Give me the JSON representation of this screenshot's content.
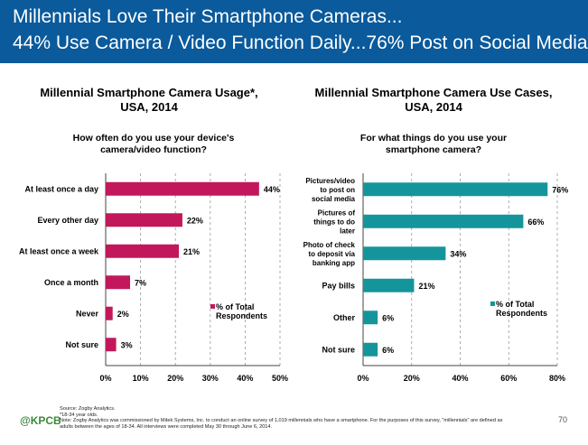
{
  "header": {
    "line1": "Millennials Love Their Smartphone Cameras...",
    "line2": "44% Use Camera / Video Function Daily...76% Post on Social Media",
    "bg_color": "#0a5a9c"
  },
  "left": {
    "title1": "Millennial Smartphone Camera Usage*,",
    "title2": "USA, 2014",
    "sub1": "How often do you use your device's",
    "sub2": "camera/video function?"
  },
  "right": {
    "title1": "Millennial Smartphone Camera Use Cases,",
    "title2": "USA, 2014",
    "sub1": "For what things do you use your",
    "sub2": "smartphone camera?"
  },
  "chart_data": [
    {
      "type": "bar",
      "orientation": "horizontal",
      "title": "Millennial Smartphone Camera Usage*, USA, 2014",
      "subtitle": "How often do you use your device's camera/video function?",
      "categories": [
        [
          "At least once a day"
        ],
        [
          "Every other day"
        ],
        [
          "At least once a week"
        ],
        [
          "Once a month"
        ],
        [
          "Never"
        ],
        [
          "Not sure"
        ]
      ],
      "values": [
        44,
        22,
        21,
        7,
        2,
        3
      ],
      "value_labels": [
        "44%",
        "22%",
        "21%",
        "7%",
        "2%",
        "3%"
      ],
      "series": [
        {
          "name": "% of Total Respondents",
          "values": [
            44,
            22,
            21,
            7,
            2,
            3
          ]
        }
      ],
      "legend_lines": [
        "% of Total",
        "Respondents"
      ],
      "xlim": [
        0,
        50
      ],
      "xticks": [
        0,
        10,
        20,
        30,
        40,
        50
      ],
      "xtick_labels": [
        "0%",
        "10%",
        "20%",
        "30%",
        "40%",
        "50%"
      ],
      "color": "#c2185b",
      "grid": "vertical dashed",
      "legend": "center-right"
    },
    {
      "type": "bar",
      "orientation": "horizontal",
      "title": "Millennial Smartphone Camera Use Cases, USA, 2014",
      "subtitle": "For what things do you use your smartphone camera?",
      "categories": [
        [
          "Pictures/video",
          "to post on",
          "social media"
        ],
        [
          "Pictures of",
          "things to do",
          "later"
        ],
        [
          "Photo of check",
          "to deposit via",
          "banking app"
        ],
        [
          "Pay bills"
        ],
        [
          "Other"
        ],
        [
          "Not sure"
        ]
      ],
      "values": [
        76,
        66,
        34,
        21,
        6,
        6
      ],
      "value_labels": [
        "76%",
        "66%",
        "34%",
        "21%",
        "6%",
        "6%"
      ],
      "series": [
        {
          "name": "% of Total Respondents",
          "values": [
            76,
            66,
            34,
            21,
            6,
            6
          ]
        }
      ],
      "legend_lines": [
        "% of Total",
        "Respondents"
      ],
      "xlim": [
        0,
        80
      ],
      "xticks": [
        0,
        20,
        40,
        60,
        80
      ],
      "xtick_labels": [
        "0%",
        "20%",
        "40%",
        "60%",
        "80%"
      ],
      "color": "#14959b",
      "grid": "vertical dashed",
      "legend": "center-right"
    }
  ],
  "footer": {
    "logo": "@KPCB",
    "source": "Source: Zogby Analytics.",
    "note1": "*18-34 year olds.",
    "note2": "Note: Zogby Analytics was commissioned by Mitek Systems, Inc. to conduct an online survey of 1,019 millennials who have a smartphone. For the purposes of this survey, \"millennials\" are defined as",
    "note3": "adults between the ages of 18-34. All interviews were completed May 30 through June 6, 2014.",
    "page": "70"
  }
}
